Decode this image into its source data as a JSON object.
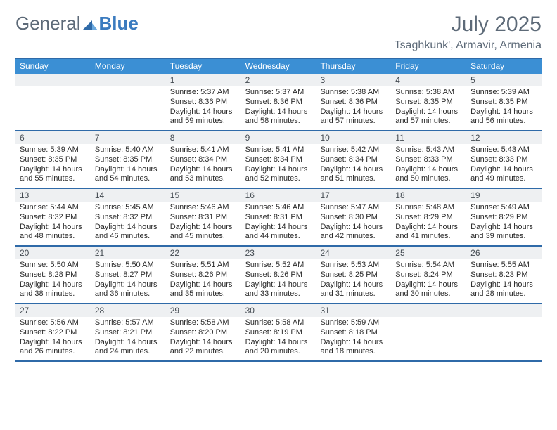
{
  "brand": {
    "part1": "General",
    "part2": "Blue"
  },
  "title": "July 2025",
  "location": "Tsaghkunk', Armavir, Armenia",
  "colors": {
    "header_bg": "#3b8fd4",
    "border": "#2f6aa8",
    "daynum_bg": "#eef0f2",
    "text_muted": "#5d6a78",
    "brand_blue": "#3b7bbf"
  },
  "days_of_week": [
    "Sunday",
    "Monday",
    "Tuesday",
    "Wednesday",
    "Thursday",
    "Friday",
    "Saturday"
  ],
  "weeks": [
    [
      null,
      null,
      {
        "n": "1",
        "sr": "Sunrise: 5:37 AM",
        "ss": "Sunset: 8:36 PM",
        "d1": "Daylight: 14 hours",
        "d2": "and 59 minutes."
      },
      {
        "n": "2",
        "sr": "Sunrise: 5:37 AM",
        "ss": "Sunset: 8:36 PM",
        "d1": "Daylight: 14 hours",
        "d2": "and 58 minutes."
      },
      {
        "n": "3",
        "sr": "Sunrise: 5:38 AM",
        "ss": "Sunset: 8:36 PM",
        "d1": "Daylight: 14 hours",
        "d2": "and 57 minutes."
      },
      {
        "n": "4",
        "sr": "Sunrise: 5:38 AM",
        "ss": "Sunset: 8:35 PM",
        "d1": "Daylight: 14 hours",
        "d2": "and 57 minutes."
      },
      {
        "n": "5",
        "sr": "Sunrise: 5:39 AM",
        "ss": "Sunset: 8:35 PM",
        "d1": "Daylight: 14 hours",
        "d2": "and 56 minutes."
      }
    ],
    [
      {
        "n": "6",
        "sr": "Sunrise: 5:39 AM",
        "ss": "Sunset: 8:35 PM",
        "d1": "Daylight: 14 hours",
        "d2": "and 55 minutes."
      },
      {
        "n": "7",
        "sr": "Sunrise: 5:40 AM",
        "ss": "Sunset: 8:35 PM",
        "d1": "Daylight: 14 hours",
        "d2": "and 54 minutes."
      },
      {
        "n": "8",
        "sr": "Sunrise: 5:41 AM",
        "ss": "Sunset: 8:34 PM",
        "d1": "Daylight: 14 hours",
        "d2": "and 53 minutes."
      },
      {
        "n": "9",
        "sr": "Sunrise: 5:41 AM",
        "ss": "Sunset: 8:34 PM",
        "d1": "Daylight: 14 hours",
        "d2": "and 52 minutes."
      },
      {
        "n": "10",
        "sr": "Sunrise: 5:42 AM",
        "ss": "Sunset: 8:34 PM",
        "d1": "Daylight: 14 hours",
        "d2": "and 51 minutes."
      },
      {
        "n": "11",
        "sr": "Sunrise: 5:43 AM",
        "ss": "Sunset: 8:33 PM",
        "d1": "Daylight: 14 hours",
        "d2": "and 50 minutes."
      },
      {
        "n": "12",
        "sr": "Sunrise: 5:43 AM",
        "ss": "Sunset: 8:33 PM",
        "d1": "Daylight: 14 hours",
        "d2": "and 49 minutes."
      }
    ],
    [
      {
        "n": "13",
        "sr": "Sunrise: 5:44 AM",
        "ss": "Sunset: 8:32 PM",
        "d1": "Daylight: 14 hours",
        "d2": "and 48 minutes."
      },
      {
        "n": "14",
        "sr": "Sunrise: 5:45 AM",
        "ss": "Sunset: 8:32 PM",
        "d1": "Daylight: 14 hours",
        "d2": "and 46 minutes."
      },
      {
        "n": "15",
        "sr": "Sunrise: 5:46 AM",
        "ss": "Sunset: 8:31 PM",
        "d1": "Daylight: 14 hours",
        "d2": "and 45 minutes."
      },
      {
        "n": "16",
        "sr": "Sunrise: 5:46 AM",
        "ss": "Sunset: 8:31 PM",
        "d1": "Daylight: 14 hours",
        "d2": "and 44 minutes."
      },
      {
        "n": "17",
        "sr": "Sunrise: 5:47 AM",
        "ss": "Sunset: 8:30 PM",
        "d1": "Daylight: 14 hours",
        "d2": "and 42 minutes."
      },
      {
        "n": "18",
        "sr": "Sunrise: 5:48 AM",
        "ss": "Sunset: 8:29 PM",
        "d1": "Daylight: 14 hours",
        "d2": "and 41 minutes."
      },
      {
        "n": "19",
        "sr": "Sunrise: 5:49 AM",
        "ss": "Sunset: 8:29 PM",
        "d1": "Daylight: 14 hours",
        "d2": "and 39 minutes."
      }
    ],
    [
      {
        "n": "20",
        "sr": "Sunrise: 5:50 AM",
        "ss": "Sunset: 8:28 PM",
        "d1": "Daylight: 14 hours",
        "d2": "and 38 minutes."
      },
      {
        "n": "21",
        "sr": "Sunrise: 5:50 AM",
        "ss": "Sunset: 8:27 PM",
        "d1": "Daylight: 14 hours",
        "d2": "and 36 minutes."
      },
      {
        "n": "22",
        "sr": "Sunrise: 5:51 AM",
        "ss": "Sunset: 8:26 PM",
        "d1": "Daylight: 14 hours",
        "d2": "and 35 minutes."
      },
      {
        "n": "23",
        "sr": "Sunrise: 5:52 AM",
        "ss": "Sunset: 8:26 PM",
        "d1": "Daylight: 14 hours",
        "d2": "and 33 minutes."
      },
      {
        "n": "24",
        "sr": "Sunrise: 5:53 AM",
        "ss": "Sunset: 8:25 PM",
        "d1": "Daylight: 14 hours",
        "d2": "and 31 minutes."
      },
      {
        "n": "25",
        "sr": "Sunrise: 5:54 AM",
        "ss": "Sunset: 8:24 PM",
        "d1": "Daylight: 14 hours",
        "d2": "and 30 minutes."
      },
      {
        "n": "26",
        "sr": "Sunrise: 5:55 AM",
        "ss": "Sunset: 8:23 PM",
        "d1": "Daylight: 14 hours",
        "d2": "and 28 minutes."
      }
    ],
    [
      {
        "n": "27",
        "sr": "Sunrise: 5:56 AM",
        "ss": "Sunset: 8:22 PM",
        "d1": "Daylight: 14 hours",
        "d2": "and 26 minutes."
      },
      {
        "n": "28",
        "sr": "Sunrise: 5:57 AM",
        "ss": "Sunset: 8:21 PM",
        "d1": "Daylight: 14 hours",
        "d2": "and 24 minutes."
      },
      {
        "n": "29",
        "sr": "Sunrise: 5:58 AM",
        "ss": "Sunset: 8:20 PM",
        "d1": "Daylight: 14 hours",
        "d2": "and 22 minutes."
      },
      {
        "n": "30",
        "sr": "Sunrise: 5:58 AM",
        "ss": "Sunset: 8:19 PM",
        "d1": "Daylight: 14 hours",
        "d2": "and 20 minutes."
      },
      {
        "n": "31",
        "sr": "Sunrise: 5:59 AM",
        "ss": "Sunset: 8:18 PM",
        "d1": "Daylight: 14 hours",
        "d2": "and 18 minutes."
      },
      null,
      null
    ]
  ]
}
